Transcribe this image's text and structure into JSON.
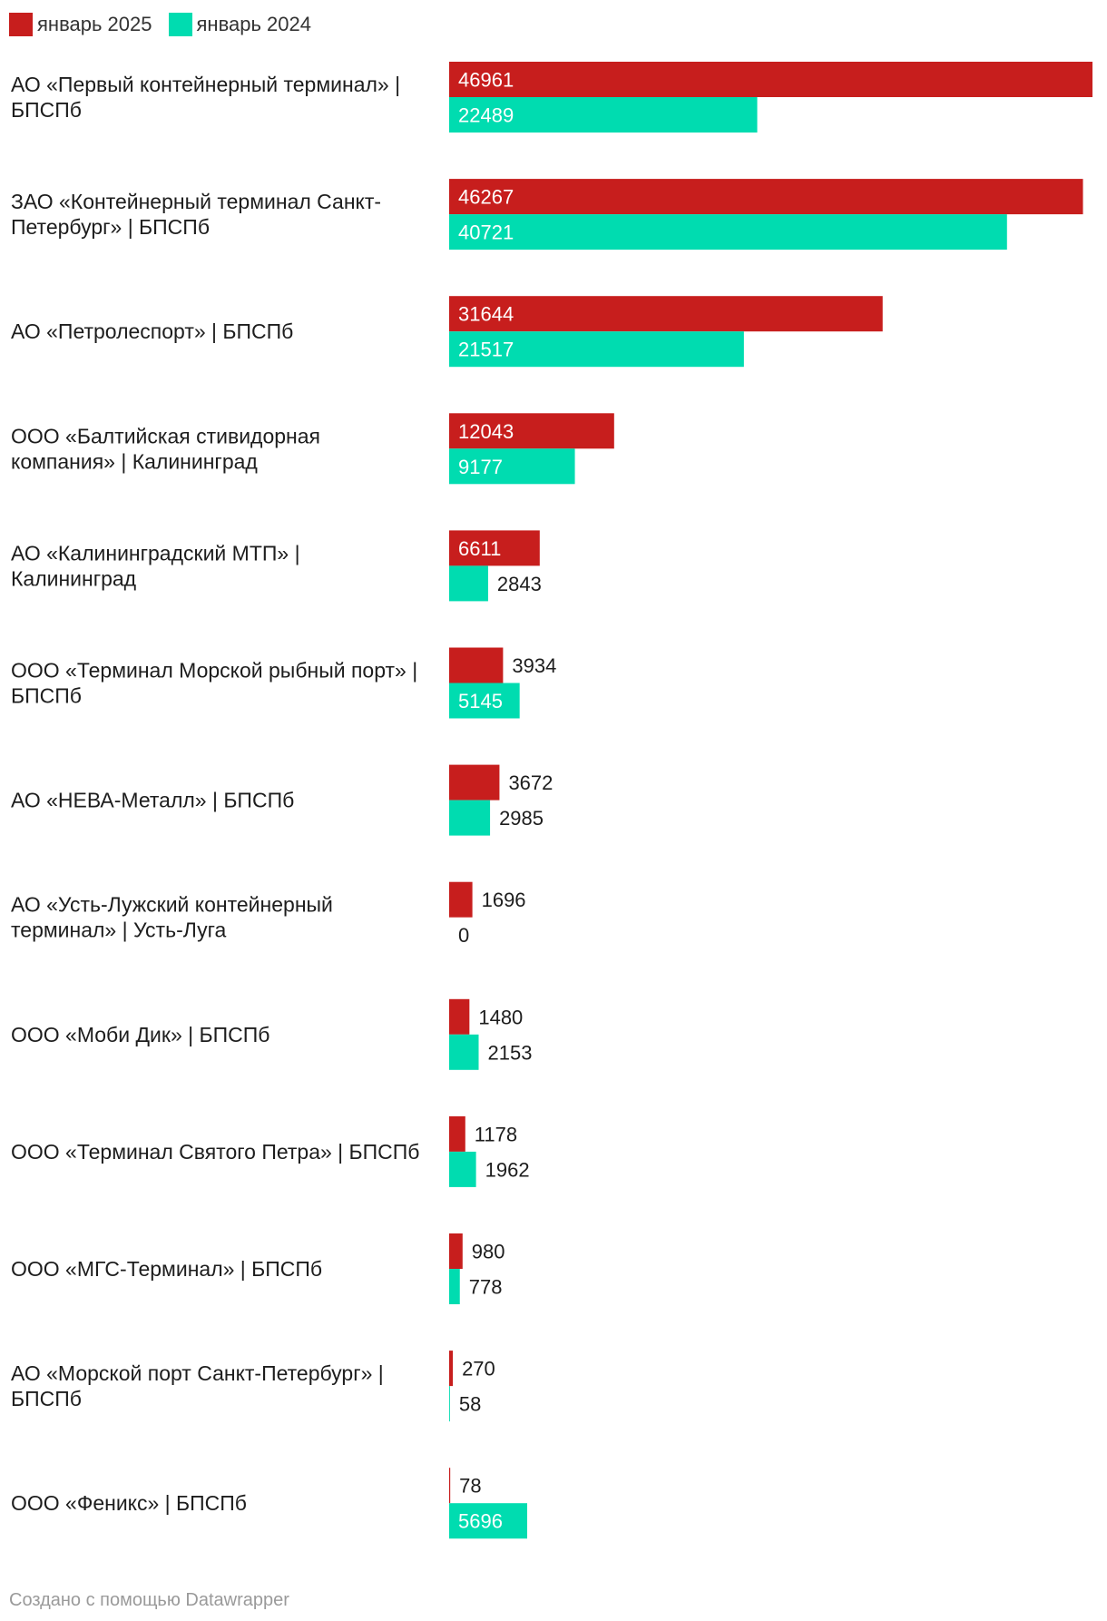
{
  "legend": [
    {
      "label": "январь 2025",
      "color": "#c71e1d"
    },
    {
      "label": "январь 2024",
      "color": "#00dcb0"
    }
  ],
  "footer": {
    "credit": "Создано с помощью Datawrapper"
  },
  "chart_data": {
    "type": "bar",
    "orientation": "horizontal",
    "grid": false,
    "legend_position": "top-left",
    "title": "",
    "xlabel": "",
    "ylabel": "",
    "xlim": [
      0,
      46961
    ],
    "categories": [
      [
        "АО «Первый контейнерный терминал» |",
        "БПСПб"
      ],
      [
        "ЗАО «Контейнерный терминал Санкт-",
        "Петербург» | БПСПб"
      ],
      [
        "АО «Петролеспорт» | БПСПб"
      ],
      [
        "ООО «Балтийская стивидорная",
        "компания» | Калининград"
      ],
      [
        "АО «Калининградский МТП» |",
        "Калининград"
      ],
      [
        "ООО «Терминал Морской рыбный порт» |",
        "БПСПб"
      ],
      [
        "АО «НЕВА-Металл» | БПСПб"
      ],
      [
        "АО «Усть-Лужский контейнерный",
        "терминал» | Усть-Луга"
      ],
      [
        "ООО «Моби Дик» | БПСПб"
      ],
      [
        "ООО «Терминал Святого Петра» | БПСПб"
      ],
      [
        "ООО «МГС-Терминал» | БПСПб"
      ],
      [
        "АО «Морской порт Санкт-Петербург» |",
        "БПСПб"
      ],
      [
        "ООО «Феникс» | БПСПб"
      ]
    ],
    "series": [
      {
        "name": "январь 2025",
        "color": "#c71e1d",
        "values": [
          46961,
          46267,
          31644,
          12043,
          6611,
          3934,
          3672,
          1696,
          1480,
          1178,
          980,
          270,
          78
        ]
      },
      {
        "name": "январь 2024",
        "color": "#00dcb0",
        "values": [
          22489,
          40721,
          21517,
          9177,
          2843,
          5145,
          2985,
          0,
          2153,
          1962,
          778,
          58,
          5696
        ]
      }
    ]
  }
}
